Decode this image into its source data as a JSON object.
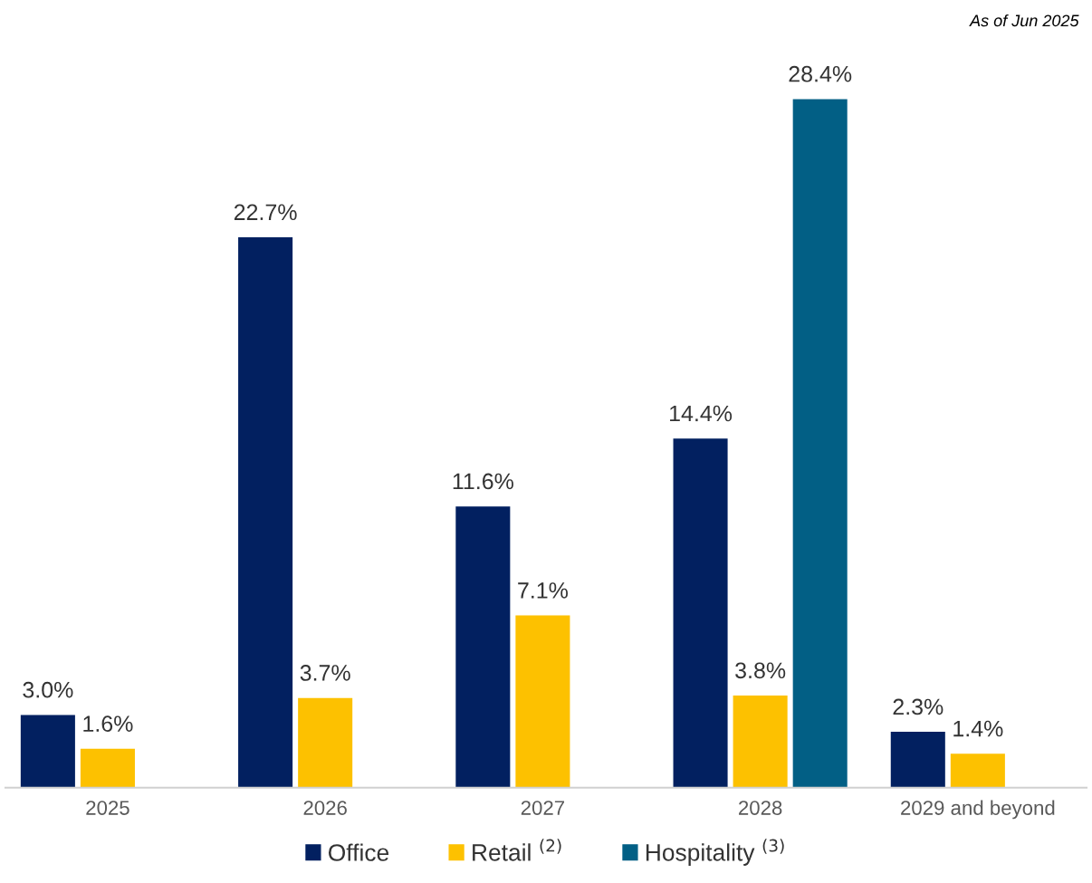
{
  "chart_data": {
    "type": "bar",
    "categories": [
      "2025",
      "2026",
      "2027",
      "2028",
      "2029 and beyond"
    ],
    "series": [
      {
        "name": "Office",
        "color": "#022060",
        "values": [
          3.0,
          22.7,
          11.6,
          14.4,
          2.3
        ],
        "value_labels": [
          "3.0%",
          "22.7%",
          "11.6%",
          "14.4%",
          "2.3%"
        ]
      },
      {
        "name": "Retail $^{(2)}$",
        "color": "#fdc100",
        "values": [
          1.6,
          3.7,
          7.1,
          3.8,
          1.4
        ],
        "value_labels": [
          "1.6%",
          "3.7%",
          "7.1%",
          "3.8%",
          "1.4%"
        ]
      },
      {
        "name": "Hospitality $^{(3)}$",
        "color": "#025f85",
        "values": [
          null,
          null,
          null,
          28.4,
          null
        ],
        "value_labels": [
          null,
          null,
          null,
          "28.4%",
          null
        ]
      }
    ],
    "annotations": [
      "As of Jun 2025"
    ],
    "tick_labels": "x",
    "grid": false,
    "legend": "bottom"
  }
}
